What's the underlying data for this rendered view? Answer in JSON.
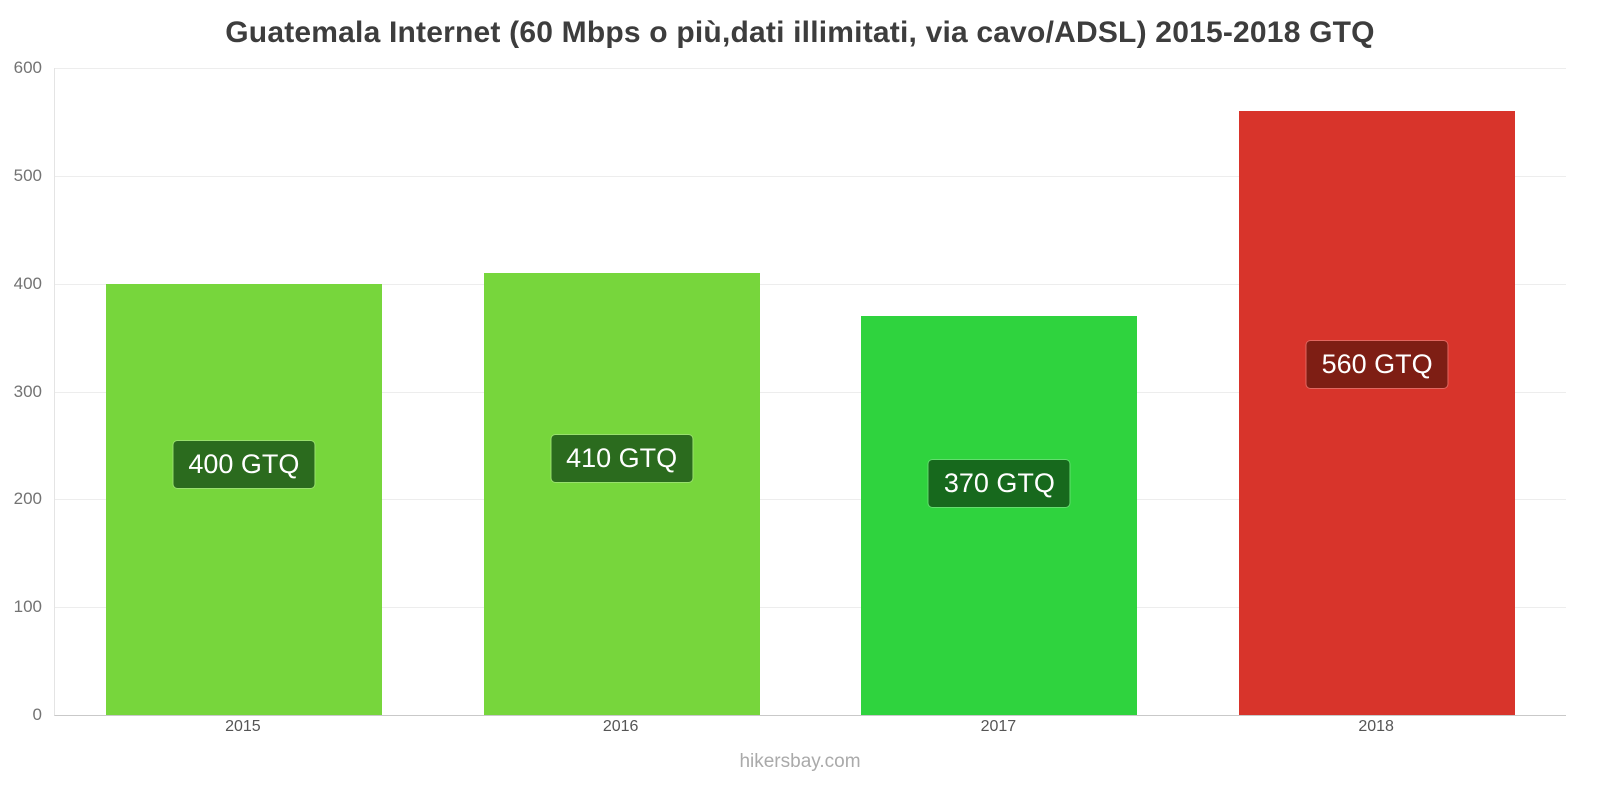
{
  "title": "Guatemala Internet (60 Mbps o più,dati illimitati, via cavo/ADSL) 2015-2018 GTQ",
  "watermark": "hikersbay.com",
  "chart_data": {
    "type": "bar",
    "title": "Guatemala Internet (60 Mbps o più,dati illimitati, via cavo/ADSL) 2015-2018 GTQ",
    "categories": [
      "2015",
      "2016",
      "2017",
      "2018"
    ],
    "values": [
      400,
      410,
      370,
      560
    ],
    "bar_labels": [
      "400 GTQ",
      "410 GTQ",
      "370 GTQ",
      "560 GTQ"
    ],
    "unit": "GTQ",
    "xlabel": "",
    "ylabel": "",
    "ylim": [
      0,
      600
    ],
    "yticks": [
      0,
      100,
      200,
      300,
      400,
      500,
      600
    ],
    "grid": true,
    "legend_position": "none",
    "bar_colors": [
      "#77d63c",
      "#77d63c",
      "#2fd33e",
      "#d8342b"
    ],
    "label_bg_colors": [
      "#2b6b1e",
      "#2b6b1e",
      "#17691d",
      "#7e1e14"
    ]
  }
}
